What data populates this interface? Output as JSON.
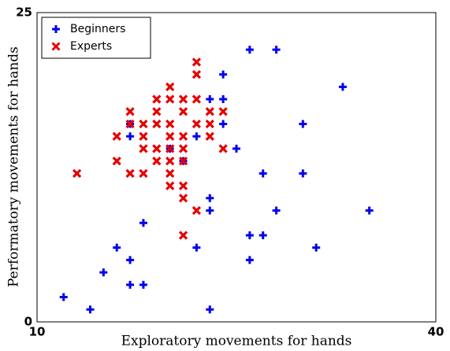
{
  "chart_data": {
    "type": "scatter",
    "x_label": "Exploratory movements for hands",
    "y_label": "Performatory movements for hands",
    "xlim": [
      10,
      40
    ],
    "ylim": [
      0,
      25
    ],
    "xticks": [
      10,
      40
    ],
    "yticks": [
      0,
      25
    ],
    "legend": "upper left",
    "series": [
      {
        "name": "Beginners",
        "color": "#0000ee",
        "marker": "plus",
        "x": [
          12,
          14,
          15,
          16,
          17,
          17,
          18,
          18,
          17,
          17,
          21,
          22,
          22,
          23,
          24,
          24,
          24,
          23,
          23,
          23,
          25,
          26,
          28,
          27,
          26,
          27,
          26,
          28,
          30,
          30,
          31,
          33,
          35,
          20
        ],
        "values": [
          2,
          1,
          4,
          6,
          5,
          3,
          3,
          8,
          16,
          15,
          13,
          15,
          6,
          18,
          18,
          20,
          16,
          10,
          9,
          1,
          14,
          22,
          22,
          12,
          7,
          7,
          5,
          9,
          16,
          12,
          6,
          19,
          9,
          14
        ]
      },
      {
        "name": "Experts",
        "color": "#e60000",
        "marker": "x",
        "x": [
          13,
          16,
          16,
          17,
          17,
          17,
          18,
          18,
          18,
          18,
          19,
          19,
          19,
          19,
          19,
          20,
          20,
          20,
          20,
          20,
          20,
          20,
          20,
          21,
          21,
          21,
          21,
          21,
          21,
          21,
          21,
          22,
          22,
          22,
          22,
          22,
          23,
          23,
          23,
          24,
          24
        ],
        "values": [
          12,
          15,
          13,
          17,
          16,
          12,
          16,
          15,
          14,
          12,
          18,
          17,
          16,
          14,
          13,
          19,
          18,
          16,
          15,
          14,
          13,
          12,
          11,
          18,
          17,
          15,
          14,
          13,
          11,
          10,
          7,
          21,
          20,
          18,
          16,
          9,
          17,
          16,
          15,
          17,
          14
        ]
      }
    ]
  }
}
